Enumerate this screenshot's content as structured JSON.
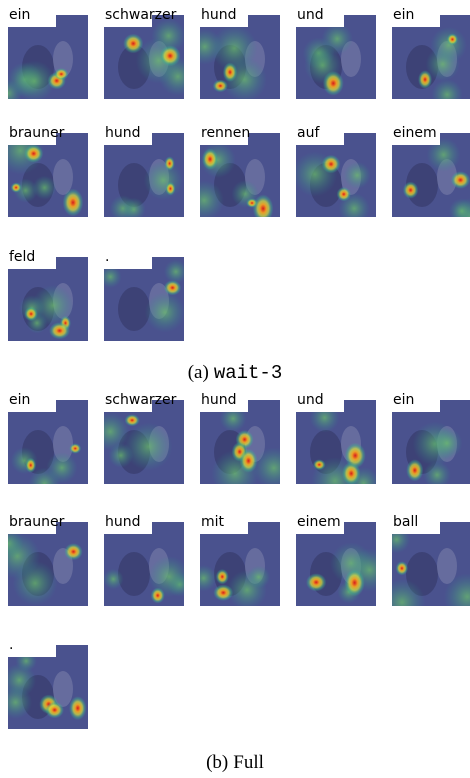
{
  "panels": [
    {
      "caption_tag": "(a)",
      "caption_method": "wait-3",
      "words": [
        "ein",
        "schwarzer",
        "hund",
        "und",
        "ein",
        "brauner",
        "hund",
        "rennen",
        "auf",
        "einem",
        "feld",
        "."
      ]
    },
    {
      "caption_tag": "(b)",
      "caption_method": "Full",
      "words": [
        "ein",
        "schwarzer",
        "hund",
        "und",
        "ein",
        "brauner",
        "hund",
        "mit",
        "einem",
        "ball",
        "."
      ]
    }
  ]
}
